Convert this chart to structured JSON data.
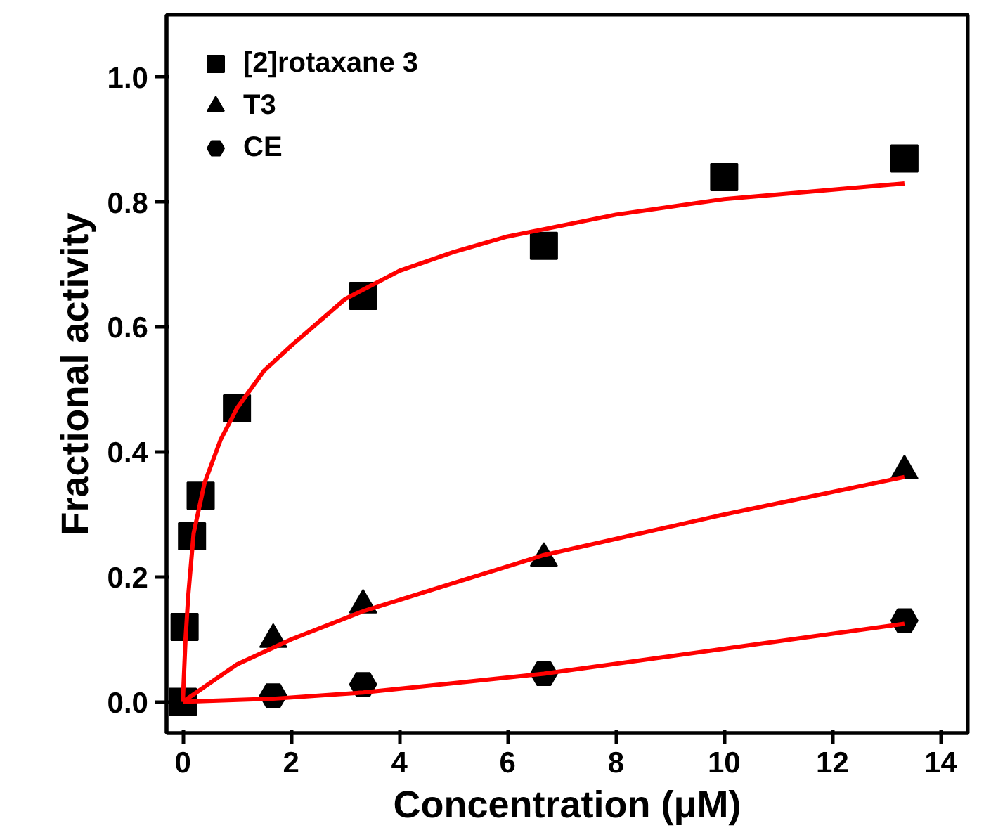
{
  "chart_data": {
    "type": "scatter",
    "xlabel": "Concentration (μM)",
    "ylabel": "Fractional activity",
    "xlim": [
      -0.3,
      14.5
    ],
    "ylim": [
      -0.05,
      1.1
    ],
    "xticks": [
      0,
      2,
      4,
      6,
      8,
      10,
      12,
      14
    ],
    "yticks": [
      {
        "value": 0,
        "label": "0.0"
      },
      {
        "value": 0.2,
        "label": "0.2"
      },
      {
        "value": 0.4,
        "label": "0.4"
      },
      {
        "value": 0.6,
        "label": "0.6"
      },
      {
        "value": 0.8,
        "label": "0.8"
      },
      {
        "value": 1.0,
        "label": "1.0"
      }
    ],
    "grid": false,
    "legend": "top left",
    "series": [
      {
        "name": "[2]rotaxane 3",
        "marker": "square",
        "color": "#000000",
        "x": [
          0,
          0.033,
          0.17,
          0.33,
          1,
          3.33,
          6.67,
          10,
          13.33
        ],
        "values": [
          0,
          0.12,
          0.265,
          0.33,
          0.47,
          0.65,
          0.73,
          0.84,
          0.87
        ]
      },
      {
        "name": "T3",
        "marker": "triangle",
        "color": "#000000",
        "x": [
          1.67,
          3.33,
          6.67,
          13.33
        ],
        "values": [
          0.1,
          0.155,
          0.23,
          0.37
        ]
      },
      {
        "name": "CE",
        "color": "#000000",
        "x": [
          1.67,
          3.33,
          6.67,
          13.33
        ],
        "values": [
          0.01,
          0.028,
          0.045,
          0.13
        ]
      },
      {
        "type": "line",
        "line_style": "solid",
        "color": "#ff0000",
        "x": [
          0,
          0.05,
          0.1,
          0.2,
          0.4,
          0.7,
          1,
          1.5,
          2,
          3,
          4,
          5,
          6,
          8,
          10,
          13.33
        ],
        "values": [
          0,
          0.1,
          0.17,
          0.27,
          0.35,
          0.42,
          0.47,
          0.53,
          0.57,
          0.645,
          0.69,
          0.72,
          0.745,
          0.78,
          0.805,
          0.83
        ]
      },
      {
        "type": "line",
        "line_style": "solid",
        "color": "#ff0000",
        "x": [
          0,
          1,
          2,
          3.33,
          5,
          6.67,
          10,
          13.33
        ],
        "values": [
          0,
          0.06,
          0.1,
          0.145,
          0.19,
          0.235,
          0.3,
          0.36
        ]
      },
      {
        "type": "line",
        "line_style": "solid",
        "color": "#ff0000",
        "x": [
          0,
          1.67,
          3.33,
          5,
          6.67,
          10,
          13.33
        ],
        "values": [
          0,
          0.005,
          0.015,
          0.03,
          0.045,
          0.085,
          0.125
        ]
      }
    ]
  }
}
